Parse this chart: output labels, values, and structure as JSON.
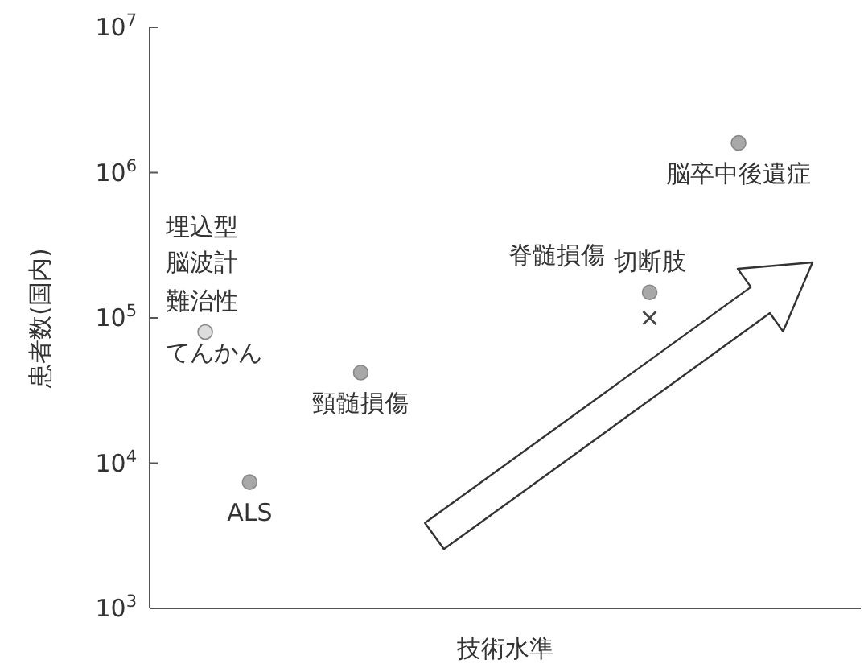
{
  "chart_data": {
    "type": "scatter",
    "xlabel": "技術水準",
    "ylabel": "患者数(国内)",
    "annotations": [
      "埋込型脳波計",
      "難治性てんかん"
    ],
    "categories": [
      null,
      null,
      null,
      null,
      null,
      null,
      null,
      null,
      null,
      null,
      null,
      null,
      null,
      null,
      null,
      null,
      null,
      null,
      null,
      null,
      null,
      null,
      null,
      null,
      null,
      null,
      null,
      null,
      null,
      null,
      null,
      null
    ],
    "log": "y",
    "ylim": [
      1000,
      10000000
    ],
    "yticks": [
      {
        "value": 1000,
        "label": "10$^{3}$"
      },
      {
        "value": 10000,
        "label": "10$^{4}$"
      },
      {
        "value": 100000,
        "label": "10$^{5}$"
      },
      {
        "value": 1000000,
        "label": "10$^{6}$"
      },
      {
        "value": 10000000,
        "label": "10$^{7}$"
      }
    ],
    "grid": false,
    "series": [
      {
        "marker": "circle",
        "color": "#a8a8a8",
        "colors": [
          null,
          null,
          "#dddddd",
          null,
          null,
          null,
          null,
          null,
          null,
          null,
          null,
          null,
          null,
          null,
          null,
          null,
          null,
          null,
          null,
          null,
          null,
          null,
          null,
          null,
          null,
          null,
          null,
          null,
          null,
          null,
          null,
          null
        ],
        "values": [
          null,
          null,
          80000,
          null,
          7400,
          null,
          null,
          null,
          null,
          42000,
          null,
          null,
          null,
          null,
          null,
          null,
          null,
          null,
          null,
          null,
          null,
          null,
          150000,
          null,
          null,
          null,
          1600000,
          null,
          null,
          null,
          null,
          null
        ],
        "value_labels": [
          null,
          null,
          null,
          null,
          "ALS",
          null,
          null,
          null,
          null,
          "頸髄損傷",
          null,
          null,
          null,
          null,
          null,
          null,
          null,
          null,
          null,
          null,
          null,
          null,
          "切断肢",
          null,
          null,
          null,
          "脳卒中後遺症",
          null,
          null,
          null,
          null,
          null
        ]
      },
      {
        "marker": "cross",
        "color": "#444444",
        "values": [
          null,
          null,
          null,
          null,
          null,
          null,
          null,
          null,
          null,
          null,
          null,
          null,
          null,
          null,
          null,
          null,
          null,
          null,
          null,
          null,
          null,
          null,
          100000,
          null,
          null,
          null,
          null,
          null,
          null,
          null,
          null,
          null
        ],
        "value_labels": [
          null,
          null,
          null,
          null,
          null,
          null,
          null,
          null,
          null,
          null,
          null,
          null,
          null,
          null,
          null,
          null,
          null,
          null,
          null,
          null,
          null,
          null,
          "脊髄損傷",
          null,
          null,
          null,
          null,
          null,
          null,
          null,
          null,
          null
        ]
      }
    ]
  }
}
